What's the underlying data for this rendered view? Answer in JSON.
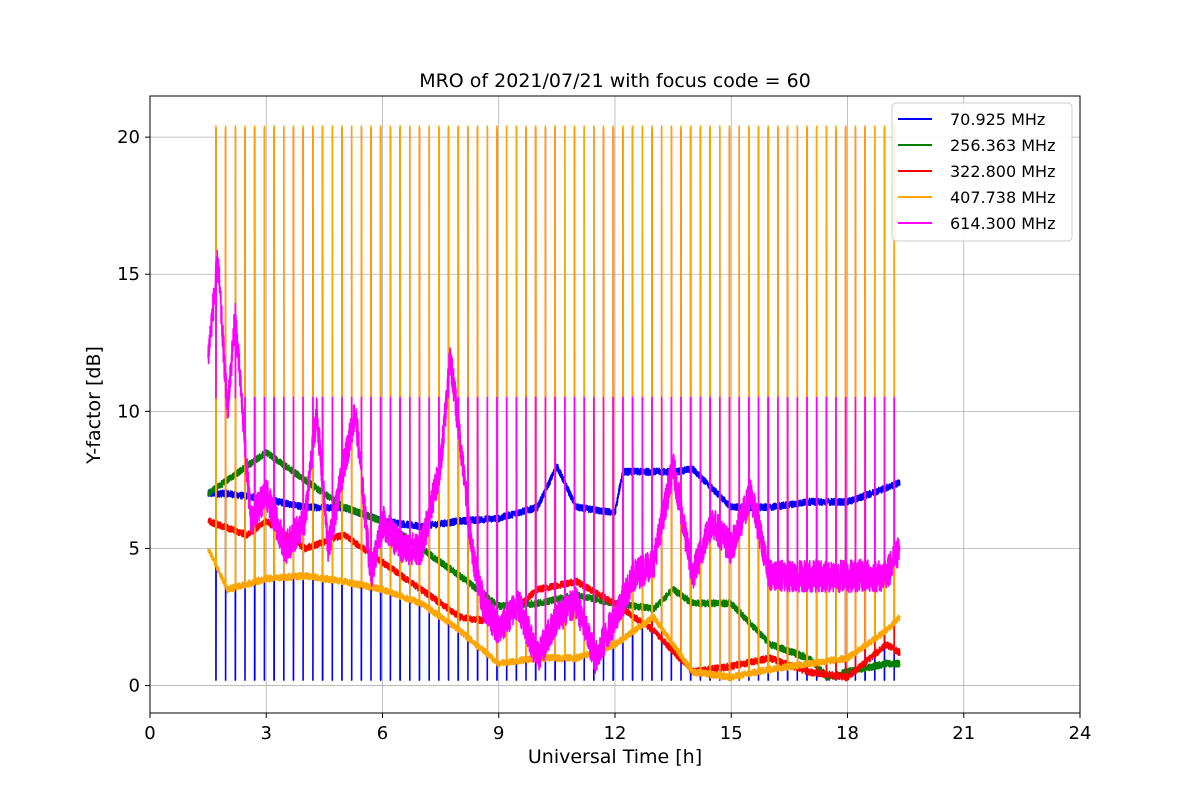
{
  "chart_data": {
    "type": "line",
    "title": "MRO of 2021/07/21 with focus code = 60",
    "xlabel": "Universal Time [h]",
    "ylabel": "Y-factor [dB]",
    "xlim": [
      0,
      24
    ],
    "ylim": [
      -1,
      21.5
    ],
    "xticks": [
      0,
      3,
      6,
      9,
      12,
      15,
      18,
      21,
      24
    ],
    "yticks": [
      0,
      5,
      10,
      15,
      20
    ],
    "grid": true,
    "legend_position": "top-right",
    "x_start": 1.5,
    "x_end": 19.35,
    "spike_period_h": 0.25,
    "series": [
      {
        "name": "70.925 MHz",
        "color": "#0000ff",
        "baseline": [
          [
            1.5,
            7.0
          ],
          [
            2.0,
            7.0
          ],
          [
            3.0,
            6.8
          ],
          [
            4.0,
            6.5
          ],
          [
            5.0,
            6.5
          ],
          [
            6.0,
            6.0
          ],
          [
            7.0,
            5.8
          ],
          [
            8.0,
            6.0
          ],
          [
            9.0,
            6.1
          ],
          [
            10.0,
            6.5
          ],
          [
            10.5,
            8.0
          ],
          [
            11.0,
            6.5
          ],
          [
            12.0,
            6.3
          ],
          [
            12.2,
            7.8
          ],
          [
            13.6,
            7.8
          ],
          [
            14.0,
            7.9
          ],
          [
            15.0,
            6.5
          ],
          [
            16.0,
            6.5
          ],
          [
            17.0,
            6.7
          ],
          [
            18.0,
            6.7
          ],
          [
            18.6,
            7.0
          ],
          [
            19.35,
            7.4
          ]
        ],
        "spike_low": 0.2,
        "spike_high": null
      },
      {
        "name": "256.363 MHz",
        "color": "#008000",
        "baseline": [
          [
            1.5,
            7.0
          ],
          [
            2.5,
            8.0
          ],
          [
            3.0,
            8.5
          ],
          [
            4.0,
            7.5
          ],
          [
            5.0,
            6.5
          ],
          [
            6.0,
            6.0
          ],
          [
            7.0,
            5.0
          ],
          [
            8.0,
            4.0
          ],
          [
            9.0,
            2.9
          ],
          [
            10.0,
            3.0
          ],
          [
            11.0,
            3.3
          ],
          [
            12.0,
            3.0
          ],
          [
            13.0,
            2.8
          ],
          [
            13.5,
            3.5
          ],
          [
            14.0,
            3.0
          ],
          [
            15.0,
            3.0
          ],
          [
            16.0,
            1.5
          ],
          [
            17.0,
            1.0
          ],
          [
            17.5,
            0.3
          ],
          [
            18.0,
            0.5
          ],
          [
            19.0,
            0.8
          ],
          [
            19.35,
            0.8
          ]
        ],
        "spike_low": null,
        "spike_high": null
      },
      {
        "name": "322.800 MHz",
        "color": "#ff0000",
        "baseline": [
          [
            1.5,
            6.0
          ],
          [
            2.5,
            5.5
          ],
          [
            3.0,
            6.0
          ],
          [
            4.0,
            5.0
          ],
          [
            5.0,
            5.5
          ],
          [
            6.0,
            4.5
          ],
          [
            7.0,
            3.5
          ],
          [
            8.0,
            2.5
          ],
          [
            9.0,
            2.3
          ],
          [
            10.0,
            3.5
          ],
          [
            11.0,
            3.8
          ],
          [
            12.0,
            3.0
          ],
          [
            13.0,
            2.0
          ],
          [
            14.0,
            0.5
          ],
          [
            15.0,
            0.7
          ],
          [
            16.0,
            1.0
          ],
          [
            17.0,
            0.5
          ],
          [
            18.0,
            0.3
          ],
          [
            19.0,
            1.5
          ],
          [
            19.35,
            1.2
          ]
        ],
        "spike_low": null,
        "spike_high": 20.3
      },
      {
        "name": "407.738 MHz",
        "color": "#ffa500",
        "baseline": [
          [
            1.5,
            5.0
          ],
          [
            2.0,
            3.5
          ],
          [
            3.0,
            3.9
          ],
          [
            4.0,
            4.0
          ],
          [
            5.0,
            3.8
          ],
          [
            6.0,
            3.5
          ],
          [
            7.0,
            3.0
          ],
          [
            8.0,
            2.0
          ],
          [
            9.0,
            0.8
          ],
          [
            10.0,
            1.0
          ],
          [
            11.0,
            1.0
          ],
          [
            12.0,
            1.5
          ],
          [
            13.0,
            2.5
          ],
          [
            14.0,
            0.5
          ],
          [
            15.0,
            0.3
          ],
          [
            16.0,
            0.6
          ],
          [
            17.0,
            0.8
          ],
          [
            18.0,
            1.0
          ],
          [
            19.0,
            2.0
          ],
          [
            19.35,
            2.5
          ]
        ],
        "spike_low": null,
        "spike_high": 20.4
      },
      {
        "name": "614.300 MHz",
        "color": "#ff00ff",
        "baseline": [
          [
            1.5,
            12.0
          ],
          [
            1.75,
            15.5
          ],
          [
            2.0,
            10.0
          ],
          [
            2.2,
            13.5
          ],
          [
            2.6,
            6.0
          ],
          [
            3.0,
            7.0
          ],
          [
            3.5,
            5.0
          ],
          [
            4.0,
            6.0
          ],
          [
            4.3,
            10.0
          ],
          [
            4.6,
            5.0
          ],
          [
            5.0,
            8.0
          ],
          [
            5.3,
            10.0
          ],
          [
            5.7,
            4.0
          ],
          [
            6.0,
            6.0
          ],
          [
            6.5,
            5.0
          ],
          [
            7.0,
            5.0
          ],
          [
            7.5,
            8.0
          ],
          [
            7.75,
            12.0
          ],
          [
            8.0,
            9.0
          ],
          [
            8.3,
            5.0
          ],
          [
            8.6,
            3.0
          ],
          [
            9.0,
            2.0
          ],
          [
            9.5,
            3.0
          ],
          [
            10.0,
            1.0
          ],
          [
            10.5,
            2.5
          ],
          [
            11.0,
            3.0
          ],
          [
            11.5,
            1.0
          ],
          [
            12.0,
            2.5
          ],
          [
            12.5,
            4.0
          ],
          [
            13.0,
            4.5
          ],
          [
            13.5,
            8.0
          ],
          [
            14.0,
            4.0
          ],
          [
            14.5,
            6.0
          ],
          [
            15.0,
            5.0
          ],
          [
            15.5,
            7.0
          ],
          [
            16.0,
            4.0
          ],
          [
            17.0,
            4.0
          ],
          [
            18.0,
            4.0
          ],
          [
            19.0,
            4.0
          ],
          [
            19.35,
            5.0
          ]
        ],
        "spike_low": null,
        "spike_high": 10.5
      }
    ]
  }
}
